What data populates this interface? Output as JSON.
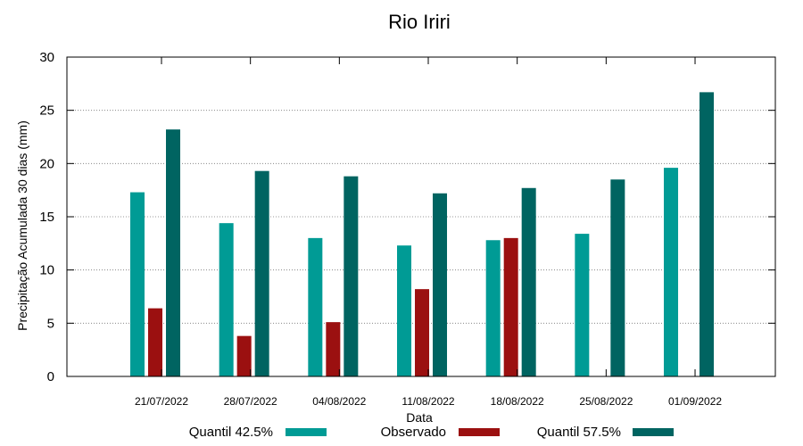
{
  "chart_data": {
    "type": "bar",
    "title": "Rio Iriri",
    "xlabel": "Data",
    "ylabel": "Precipitação Acumulada 30 dias (mm)",
    "ylim": [
      0,
      30
    ],
    "yticks": [
      "0",
      "5",
      "10",
      "15",
      "20",
      "25",
      "30"
    ],
    "grid": true,
    "legend_position": "bottom",
    "categories": [
      "21/07/2022",
      "28/07/2022",
      "04/08/2022",
      "11/08/2022",
      "18/08/2022",
      "25/08/2022",
      "01/09/2022"
    ],
    "series": [
      {
        "name": "Quantil 42.5%",
        "color": "#009b95",
        "values": [
          17.3,
          14.4,
          13.0,
          12.3,
          12.8,
          13.4,
          19.6
        ]
      },
      {
        "name": "Observado",
        "color": "#9b1010",
        "values": [
          6.4,
          3.8,
          5.1,
          8.2,
          13.0,
          null,
          null
        ]
      },
      {
        "name": "Quantil 57.5%",
        "color": "#006461",
        "values": [
          23.2,
          19.3,
          18.8,
          17.2,
          17.7,
          18.5,
          26.7
        ]
      }
    ]
  }
}
